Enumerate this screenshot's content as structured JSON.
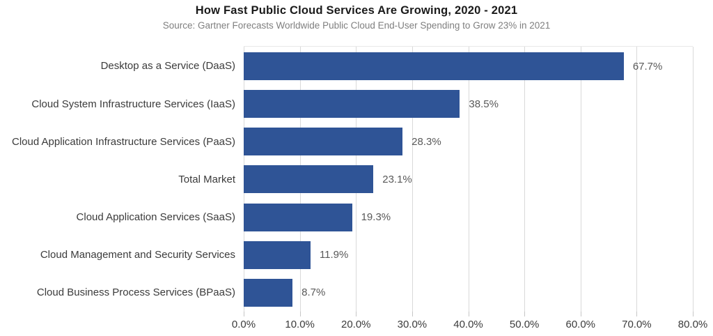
{
  "header": {
    "title": "How Fast Public Cloud Services Are Growing, 2020 - 2021",
    "subtitle": "Source: Gartner Forecasts Worldwide Public Cloud End-User Spending to Grow 23% in 2021"
  },
  "chart_data": {
    "type": "bar",
    "orientation": "horizontal",
    "title": "How Fast Public Cloud Services Are Growing, 2020 - 2021",
    "subtitle": "Source: Gartner Forecasts Worldwide Public Cloud End-User Spending to Grow 23% in 2021",
    "categories": [
      "Desktop as a Service (DaaS)",
      "Cloud System Infrastructure Services (IaaS)",
      "Cloud Application Infrastructure Services (PaaS)",
      "Total Market",
      "Cloud Application Services (SaaS)",
      "Cloud Management and Security Services",
      "Cloud Business Process Services (BPaaS)"
    ],
    "values": [
      67.7,
      38.5,
      28.3,
      23.1,
      19.3,
      11.9,
      8.7
    ],
    "value_labels": [
      "67.7%",
      "38.5%",
      "28.3%",
      "23.1%",
      "19.3%",
      "11.9%",
      "8.7%"
    ],
    "xlabel": "",
    "ylabel": "",
    "xlim": [
      0,
      80
    ],
    "x_ticks": [
      0,
      10,
      20,
      30,
      40,
      50,
      60,
      70,
      80
    ],
    "x_tick_labels": [
      "0.0%",
      "10.0%",
      "20.0%",
      "30.0%",
      "40.0%",
      "50.0%",
      "60.0%",
      "70.0%",
      "80.0%"
    ],
    "grid": "vertical",
    "legend": "none",
    "colors": {
      "bar": "#2f5496",
      "gridline": "#d9d9d9",
      "tick_mark": "#c6c6c6",
      "title_text": "#1a1a1a",
      "subtitle_text": "#7f7f7f",
      "category_text": "#3b3b3b",
      "value_text": "#595959",
      "background": "#ffffff"
    }
  }
}
